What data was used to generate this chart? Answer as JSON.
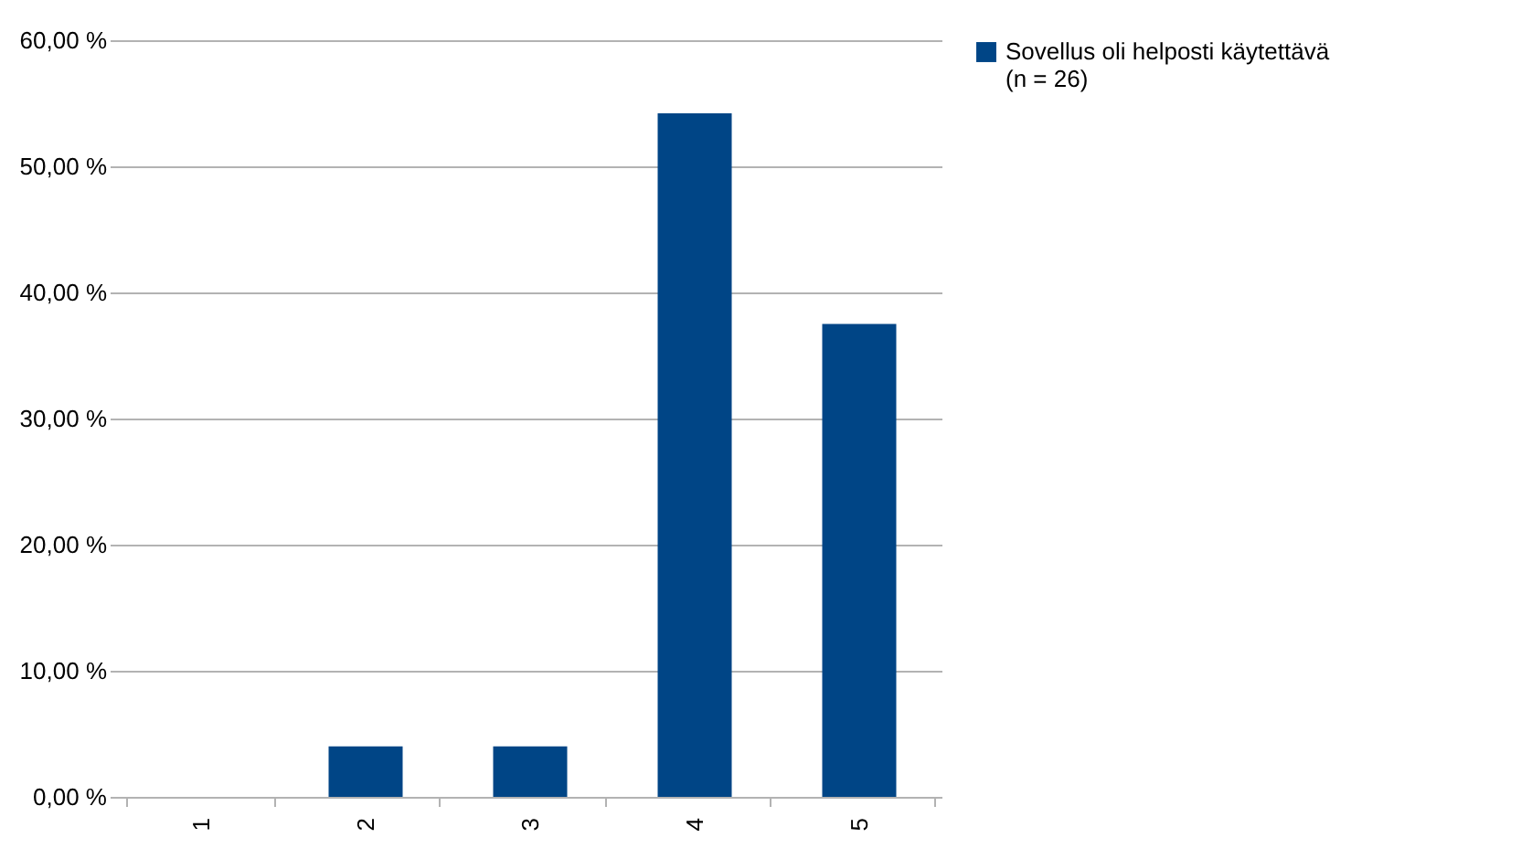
{
  "chart_data": {
    "type": "bar",
    "categories": [
      "1",
      "2",
      "3",
      "4",
      "5"
    ],
    "series": [
      {
        "name": "Sovellus oli helposti käytettävä\n(n = 26)",
        "color": "#004586",
        "values": [
          0,
          4,
          4,
          54.2,
          37.5
        ]
      }
    ],
    "ylim": [
      0,
      60
    ],
    "yticks": [
      {
        "value": 0,
        "label": "0,00 %"
      },
      {
        "value": 10,
        "label": "10,00 %"
      },
      {
        "value": 20,
        "label": "20,00 %"
      },
      {
        "value": 30,
        "label": "30,00 %"
      },
      {
        "value": 40,
        "label": "40,00 %"
      },
      {
        "value": 50,
        "label": "50,00 %"
      },
      {
        "value": 60,
        "label": "60,00 %"
      }
    ],
    "grid": "y",
    "legend": "right"
  }
}
